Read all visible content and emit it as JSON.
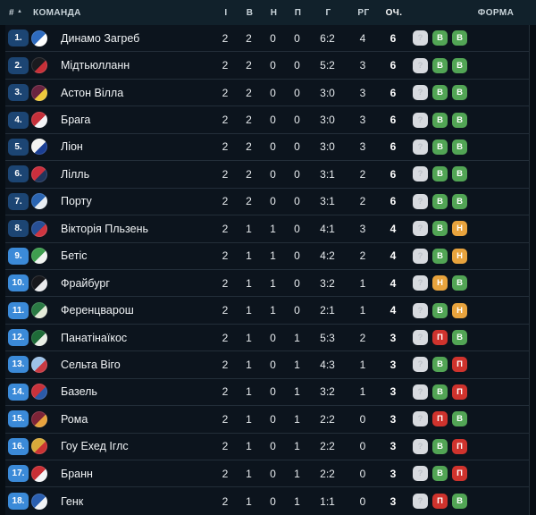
{
  "theme": {
    "page_bg": "#070d13",
    "header_bg": "#11212b",
    "header_text": "#c9d4da",
    "row_bg": "#0c141d",
    "separator": "#232e39",
    "text": "#e9edf0",
    "zone_direct": "#1c4573",
    "zone_playoff": "#3b8ad8",
    "win": "#52a555",
    "draw": "#e8a33d",
    "loss": "#cf332d",
    "unknown_bg": "#d7dadf",
    "unknown_text": "#bcc1c8"
  },
  "table": {
    "headers": {
      "pos": "#",
      "sort_arrow": "▲",
      "team": "КОМАНДА",
      "played": "І",
      "wins": "В",
      "draws": "Н",
      "losses": "П",
      "goals": "Г",
      "goal_diff": "РГ",
      "points": "ОЧ.",
      "form": "ФОРМА"
    },
    "form_legend": {
      "win": "В",
      "draw": "Н",
      "loss": "П",
      "unknown": "?"
    },
    "rows": [
      {
        "pos": "1.",
        "team": "Динамо Загреб",
        "played": "2",
        "wins": "2",
        "draws": "0",
        "losses": "0",
        "goals": "6:2",
        "goal_diff": "4",
        "points": "6",
        "zone": "top8",
        "form": [
          "?",
          "В",
          "В"
        ],
        "logo_colors": [
          "#2e6bbf",
          "#ffffff"
        ]
      },
      {
        "pos": "2.",
        "team": "Мідтьюлланн",
        "played": "2",
        "wins": "2",
        "draws": "0",
        "losses": "0",
        "goals": "5:2",
        "goal_diff": "3",
        "points": "6",
        "zone": "top8",
        "form": [
          "?",
          "В",
          "В"
        ],
        "logo_colors": [
          "#1b1b1f",
          "#c73038"
        ]
      },
      {
        "pos": "3.",
        "team": "Астон Вілла",
        "played": "2",
        "wins": "2",
        "draws": "0",
        "losses": "0",
        "goals": "3:0",
        "goal_diff": "3",
        "points": "6",
        "zone": "top8",
        "form": [
          "?",
          "В",
          "В"
        ],
        "logo_colors": [
          "#6a2440",
          "#f0c93c"
        ]
      },
      {
        "pos": "4.",
        "team": "Брага",
        "played": "2",
        "wins": "2",
        "draws": "0",
        "losses": "0",
        "goals": "3:0",
        "goal_diff": "3",
        "points": "6",
        "zone": "top8",
        "form": [
          "?",
          "В",
          "В"
        ],
        "logo_colors": [
          "#c5303a",
          "#f3f4f6"
        ]
      },
      {
        "pos": "5.",
        "team": "Ліон",
        "played": "2",
        "wins": "2",
        "draws": "0",
        "losses": "0",
        "goals": "3:0",
        "goal_diff": "3",
        "points": "6",
        "zone": "top8",
        "form": [
          "?",
          "В",
          "В"
        ],
        "logo_colors": [
          "#f4f4f2",
          "#1b3f94"
        ]
      },
      {
        "pos": "6.",
        "team": "Лілль",
        "played": "2",
        "wins": "2",
        "draws": "0",
        "losses": "0",
        "goals": "3:1",
        "goal_diff": "2",
        "points": "6",
        "zone": "top8",
        "form": [
          "?",
          "В",
          "В"
        ],
        "logo_colors": [
          "#ca2f3d",
          "#20355c"
        ]
      },
      {
        "pos": "7.",
        "team": "Порту",
        "played": "2",
        "wins": "2",
        "draws": "0",
        "losses": "0",
        "goals": "3:1",
        "goal_diff": "2",
        "points": "6",
        "zone": "top8",
        "form": [
          "?",
          "В",
          "В"
        ],
        "logo_colors": [
          "#2b65b2",
          "#e8edf2"
        ]
      },
      {
        "pos": "8.",
        "team": "Вікторія Пльзень",
        "played": "2",
        "wins": "1",
        "draws": "1",
        "losses": "0",
        "goals": "4:1",
        "goal_diff": "3",
        "points": "4",
        "zone": "top8",
        "form": [
          "?",
          "В",
          "Н"
        ],
        "logo_colors": [
          "#274f96",
          "#cf3540"
        ]
      },
      {
        "pos": "9.",
        "team": "Бетіс",
        "played": "2",
        "wins": "1",
        "draws": "1",
        "losses": "0",
        "goals": "4:2",
        "goal_diff": "2",
        "points": "4",
        "zone": "playoff",
        "form": [
          "?",
          "В",
          "Н"
        ],
        "logo_colors": [
          "#3f9e4f",
          "#f2f5f2"
        ]
      },
      {
        "pos": "10.",
        "team": "Фрайбург",
        "played": "2",
        "wins": "1",
        "draws": "1",
        "losses": "0",
        "goals": "3:2",
        "goal_diff": "1",
        "points": "4",
        "zone": "playoff",
        "form": [
          "?",
          "Н",
          "В"
        ],
        "logo_colors": [
          "#17181c",
          "#e9eaec"
        ]
      },
      {
        "pos": "11.",
        "team": "Ференцварош",
        "played": "2",
        "wins": "1",
        "draws": "1",
        "losses": "0",
        "goals": "2:1",
        "goal_diff": "1",
        "points": "4",
        "zone": "playoff",
        "form": [
          "?",
          "В",
          "Н"
        ],
        "logo_colors": [
          "#2b7a44",
          "#e4ead8"
        ]
      },
      {
        "pos": "12.",
        "team": "Панатінаїкос",
        "played": "2",
        "wins": "1",
        "draws": "0",
        "losses": "1",
        "goals": "5:3",
        "goal_diff": "2",
        "points": "3",
        "zone": "playoff",
        "form": [
          "?",
          "П",
          "В"
        ],
        "logo_colors": [
          "#1e6b38",
          "#e9efe6"
        ]
      },
      {
        "pos": "13.",
        "team": "Сельта Віго",
        "played": "2",
        "wins": "1",
        "draws": "0",
        "losses": "1",
        "goals": "4:3",
        "goal_diff": "1",
        "points": "3",
        "zone": "playoff",
        "form": [
          "?",
          "В",
          "П"
        ],
        "logo_colors": [
          "#9dc2e8",
          "#c83a42"
        ]
      },
      {
        "pos": "14.",
        "team": "Базель",
        "played": "2",
        "wins": "1",
        "draws": "0",
        "losses": "1",
        "goals": "3:2",
        "goal_diff": "1",
        "points": "3",
        "zone": "playoff",
        "form": [
          "?",
          "В",
          "П"
        ],
        "logo_colors": [
          "#c8323c",
          "#2b5aa8"
        ]
      },
      {
        "pos": "15.",
        "team": "Рома",
        "played": "2",
        "wins": "1",
        "draws": "0",
        "losses": "1",
        "goals": "2:2",
        "goal_diff": "0",
        "points": "3",
        "zone": "playoff",
        "form": [
          "?",
          "П",
          "В"
        ],
        "logo_colors": [
          "#7e2437",
          "#e8a33d"
        ]
      },
      {
        "pos": "16.",
        "team": "Гоу Ехед Іглс",
        "played": "2",
        "wins": "1",
        "draws": "0",
        "losses": "1",
        "goals": "2:2",
        "goal_diff": "0",
        "points": "3",
        "zone": "playoff",
        "form": [
          "?",
          "В",
          "П"
        ],
        "logo_colors": [
          "#d8a93a",
          "#ca3333"
        ]
      },
      {
        "pos": "17.",
        "team": "Бранн",
        "played": "2",
        "wins": "1",
        "draws": "0",
        "losses": "1",
        "goals": "2:2",
        "goal_diff": "0",
        "points": "3",
        "zone": "playoff",
        "form": [
          "?",
          "В",
          "П"
        ],
        "logo_colors": [
          "#c92f35",
          "#f3f4f6"
        ]
      },
      {
        "pos": "18.",
        "team": "Генк",
        "played": "2",
        "wins": "1",
        "draws": "0",
        "losses": "1",
        "goals": "1:1",
        "goal_diff": "0",
        "points": "3",
        "zone": "playoff",
        "form": [
          "?",
          "П",
          "В"
        ],
        "logo_colors": [
          "#2b5fb0",
          "#f1f3f6"
        ]
      }
    ]
  }
}
